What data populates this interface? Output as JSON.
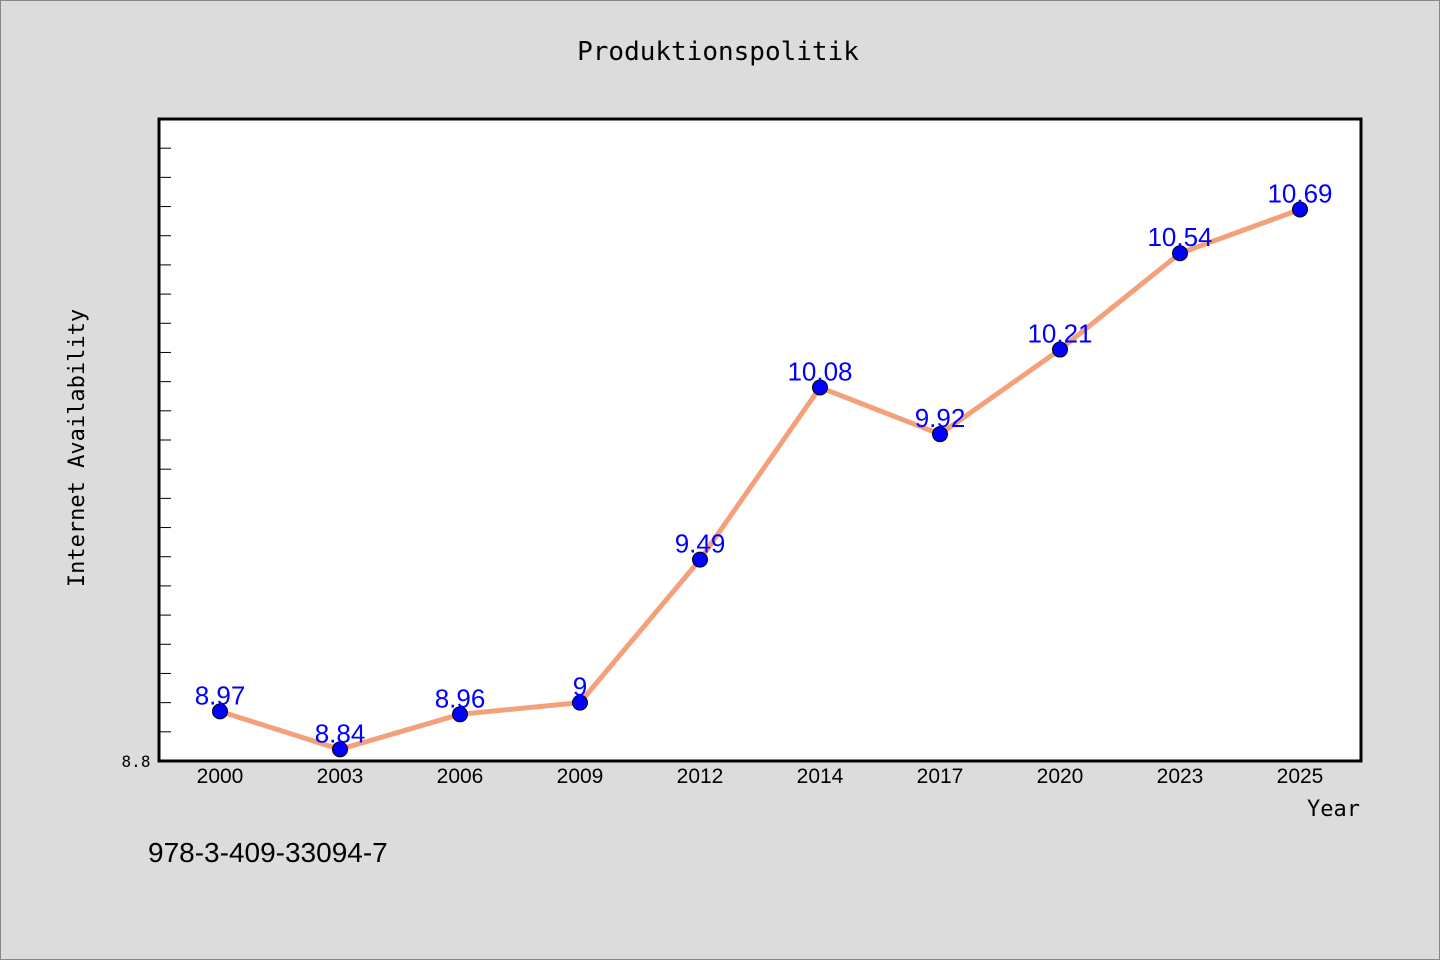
{
  "chart_data": {
    "type": "line",
    "title": "Produktionspolitik",
    "xlabel": "Year",
    "ylabel": "Internet Availability",
    "categories": [
      "2000",
      "2003",
      "2006",
      "2009",
      "2012",
      "2014",
      "2017",
      "2020",
      "2023",
      "2025"
    ],
    "series": [
      {
        "values": [
          8.97,
          8.84,
          8.96,
          9,
          9.49,
          10.08,
          9.92,
          10.21,
          10.54,
          10.69
        ],
        "labels": [
          "8.97",
          "8.84",
          "8.96",
          "9",
          "9.49",
          "10.08",
          "9.92",
          "10.21",
          "10.54",
          "10.69"
        ]
      }
    ],
    "ylim": [
      8.8,
      11.0
    ],
    "y_tick_labels_shown": [
      "8.8"
    ],
    "y_tick_step": 0.1,
    "grid": false,
    "line_color": "#f4a07a",
    "marker_color": "#0000ff",
    "label_color": "#0000ff"
  },
  "footer_text": "978-3-409-33094-7"
}
